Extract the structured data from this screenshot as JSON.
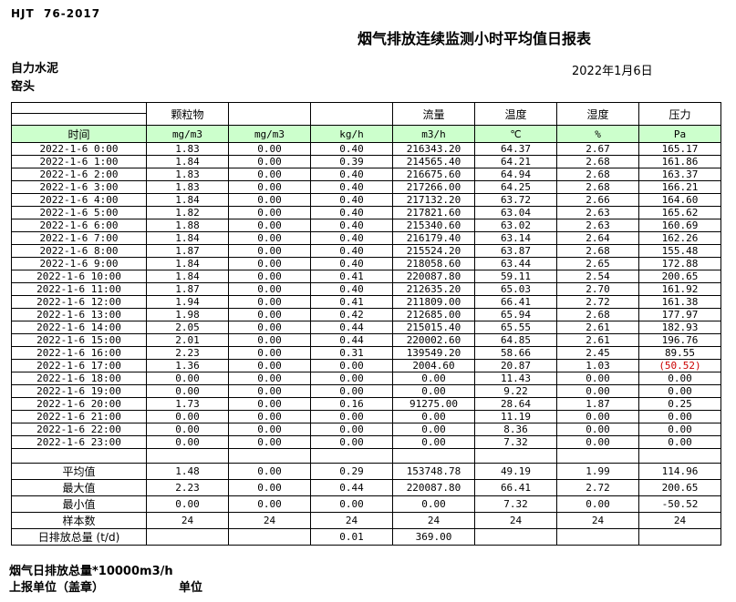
{
  "colors": {
    "header_green": "#ccffcc",
    "negative_red": "#cc0000"
  },
  "header": {
    "doc_code": "HJT  76-2017",
    "title": "烟气排放连续监测小时平均值日报表",
    "company": "自力水泥",
    "stack": "窑头",
    "date": "2022年1月6日"
  },
  "table": {
    "top_headers": [
      "",
      "颗粒物",
      "",
      "",
      "流量",
      "温度",
      "湿度",
      "压力"
    ],
    "unit_row": {
      "time_label": "时间",
      "units": [
        "mg/m3",
        "mg/m3",
        "kg/h",
        "m3/h",
        "℃",
        "%",
        "Pa"
      ]
    },
    "rows": [
      {
        "time": "2022-1-6 0:00",
        "values": [
          "1.83",
          "0.00",
          "0.40",
          "216343.20",
          "64.37",
          "2.67",
          "165.17"
        ]
      },
      {
        "time": "2022-1-6 1:00",
        "values": [
          "1.84",
          "0.00",
          "0.39",
          "214565.40",
          "64.21",
          "2.68",
          "161.86"
        ]
      },
      {
        "time": "2022-1-6 2:00",
        "values": [
          "1.83",
          "0.00",
          "0.40",
          "216675.60",
          "64.94",
          "2.68",
          "163.37"
        ]
      },
      {
        "time": "2022-1-6 3:00",
        "values": [
          "1.83",
          "0.00",
          "0.40",
          "217266.00",
          "64.25",
          "2.68",
          "166.21"
        ]
      },
      {
        "time": "2022-1-6 4:00",
        "values": [
          "1.84",
          "0.00",
          "0.40",
          "217132.20",
          "63.72",
          "2.66",
          "164.60"
        ]
      },
      {
        "time": "2022-1-6 5:00",
        "values": [
          "1.82",
          "0.00",
          "0.40",
          "217821.60",
          "63.04",
          "2.63",
          "165.62"
        ]
      },
      {
        "time": "2022-1-6 6:00",
        "values": [
          "1.88",
          "0.00",
          "0.40",
          "215340.60",
          "63.02",
          "2.63",
          "160.69"
        ]
      },
      {
        "time": "2022-1-6 7:00",
        "values": [
          "1.84",
          "0.00",
          "0.40",
          "216179.40",
          "63.14",
          "2.64",
          "162.26"
        ]
      },
      {
        "time": "2022-1-6 8:00",
        "values": [
          "1.87",
          "0.00",
          "0.40",
          "215524.20",
          "63.87",
          "2.68",
          "155.48"
        ]
      },
      {
        "time": "2022-1-6 9:00",
        "values": [
          "1.84",
          "0.00",
          "0.40",
          "218058.60",
          "63.44",
          "2.65",
          "172.88"
        ]
      },
      {
        "time": "2022-1-6 10:00",
        "values": [
          "1.84",
          "0.00",
          "0.41",
          "220087.80",
          "59.11",
          "2.54",
          "200.65"
        ]
      },
      {
        "time": "2022-1-6 11:00",
        "values": [
          "1.87",
          "0.00",
          "0.40",
          "212635.20",
          "65.03",
          "2.70",
          "161.92"
        ]
      },
      {
        "time": "2022-1-6 12:00",
        "values": [
          "1.94",
          "0.00",
          "0.41",
          "211809.00",
          "66.41",
          "2.72",
          "161.38"
        ]
      },
      {
        "time": "2022-1-6 13:00",
        "values": [
          "1.98",
          "0.00",
          "0.42",
          "212685.00",
          "65.94",
          "2.68",
          "177.97"
        ]
      },
      {
        "time": "2022-1-6 14:00",
        "values": [
          "2.05",
          "0.00",
          "0.44",
          "215015.40",
          "65.55",
          "2.61",
          "182.93"
        ]
      },
      {
        "time": "2022-1-6 15:00",
        "values": [
          "2.01",
          "0.00",
          "0.44",
          "220002.60",
          "64.85",
          "2.61",
          "196.76"
        ]
      },
      {
        "time": "2022-1-6 16:00",
        "values": [
          "2.23",
          "0.00",
          "0.31",
          "139549.20",
          "58.66",
          "2.45",
          "89.55"
        ]
      },
      {
        "time": "2022-1-6 17:00",
        "values": [
          "1.36",
          "0.00",
          "0.00",
          "2004.60",
          "20.87",
          "1.03",
          "(50.52)"
        ]
      },
      {
        "time": "2022-1-6 18:00",
        "values": [
          "0.00",
          "0.00",
          "0.00",
          "0.00",
          "11.43",
          "0.00",
          "0.00"
        ]
      },
      {
        "time": "2022-1-6 19:00",
        "values": [
          "0.00",
          "0.00",
          "0.00",
          "0.00",
          "9.22",
          "0.00",
          "0.00"
        ]
      },
      {
        "time": "2022-1-6 20:00",
        "values": [
          "1.73",
          "0.00",
          "0.16",
          "91275.00",
          "28.64",
          "1.87",
          "0.25"
        ]
      },
      {
        "time": "2022-1-6 21:00",
        "values": [
          "0.00",
          "0.00",
          "0.00",
          "0.00",
          "11.19",
          "0.00",
          "0.00"
        ]
      },
      {
        "time": "2022-1-6 22:00",
        "values": [
          "0.00",
          "0.00",
          "0.00",
          "0.00",
          "8.36",
          "0.00",
          "0.00"
        ]
      },
      {
        "time": "2022-1-6 23:00",
        "values": [
          "0.00",
          "0.00",
          "0.00",
          "0.00",
          "7.32",
          "0.00",
          "0.00"
        ]
      }
    ],
    "summary": [
      {
        "label": "平均值",
        "values": [
          "1.48",
          "0.00",
          "0.29",
          "153748.78",
          "49.19",
          "1.99",
          "114.96"
        ]
      },
      {
        "label": "最大值",
        "values": [
          "2.23",
          "0.00",
          "0.44",
          "220087.80",
          "66.41",
          "2.72",
          "200.65"
        ]
      },
      {
        "label": "最小值",
        "values": [
          "0.00",
          "0.00",
          "0.00",
          "0.00",
          "7.32",
          "0.00",
          "-50.52"
        ]
      },
      {
        "label": "样本数",
        "values": [
          "24",
          "24",
          "24",
          "24",
          "24",
          "24",
          "24"
        ]
      },
      {
        "label": "日排放总量 (t/d)",
        "values": [
          "",
          "",
          "0.01",
          "369.00",
          "",
          "",
          ""
        ]
      }
    ]
  },
  "footer": {
    "note": "烟气日排放总量*10000m3/h",
    "report_unit_label": "上报单位（盖章）",
    "unit_label": "单位"
  }
}
